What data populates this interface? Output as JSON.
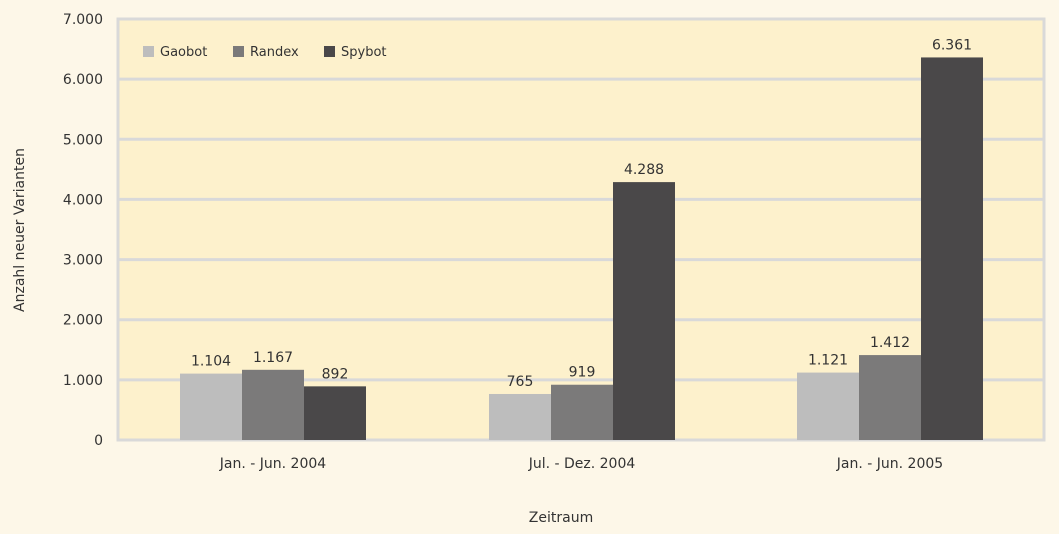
{
  "chart_data": {
    "type": "bar",
    "categories": [
      "Jan. - Jun. 2004",
      "Jul. - Dez. 2004",
      "Jan. - Jun. 2005"
    ],
    "series": [
      {
        "name": "Gaobot",
        "values": [
          1104,
          765,
          1121
        ],
        "labels": [
          "1.104",
          "765",
          "1.121"
        ],
        "color": "#bdbdbd"
      },
      {
        "name": "Randex",
        "values": [
          1167,
          919,
          1412
        ],
        "labels": [
          "1.167",
          "919",
          "1.412"
        ],
        "color": "#7b7a7a"
      },
      {
        "name": "Spybot",
        "values": [
          892,
          4288,
          6361
        ],
        "labels": [
          "892",
          "4.288",
          "6.361"
        ],
        "color": "#4a4849"
      }
    ],
    "ylim": [
      0,
      7000
    ],
    "yticks": [
      0,
      1000,
      2000,
      3000,
      4000,
      5000,
      6000,
      7000
    ],
    "ytick_labels": [
      "0",
      "1.000",
      "2.000",
      "3.000",
      "4.000",
      "5.000",
      "6.000",
      "7.000"
    ],
    "xlabel": "Zeitraum",
    "ylabel": "Anzahl neuer Varianten",
    "grid": true,
    "legend_position": "top-left",
    "plot_background": "#fdf1cc",
    "gridline_color": "#d9d9d9"
  }
}
